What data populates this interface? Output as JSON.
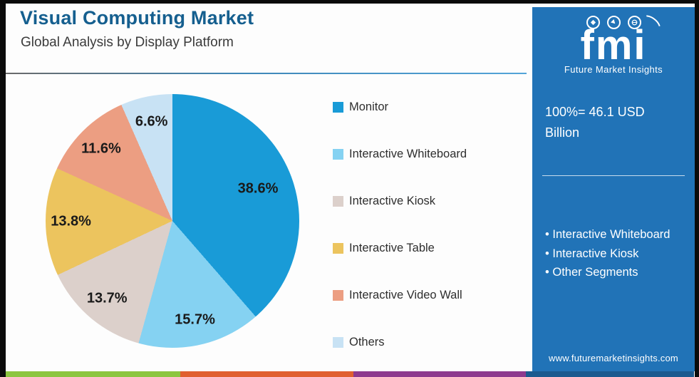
{
  "header": {
    "title": "Visual Computing Market",
    "subtitle": "Global Analysis by Display Platform"
  },
  "chart_data": {
    "type": "pie",
    "title": "Visual Computing Market - Global Analysis by Display Platform",
    "categories": [
      "Monitor",
      "Interactive Whiteboard",
      "Interactive Kiosk",
      "Interactive Table",
      "Interactive Video Wall",
      "Others"
    ],
    "values": [
      38.6,
      15.7,
      13.7,
      13.8,
      11.6,
      6.6
    ],
    "labels": [
      "38.6%",
      "15.7%",
      "13.7%",
      "13.8%",
      "11.6%",
      "6.6%"
    ],
    "unit": "%",
    "colors": [
      "#199bd7",
      "#85d2f2",
      "#dcd0cb",
      "#ecc45e",
      "#ec9e82",
      "#c8e2f4"
    ],
    "legend_position": "right",
    "total_label": "100%= 46.1 USD Billion"
  },
  "sidebar": {
    "logo": {
      "text": "fmi",
      "tagline": "Future Market Insights",
      "icons": [
        "handshake-icon",
        "compass-icon",
        "globe-icon"
      ]
    },
    "market_size": "100%= 46.1 USD Billion",
    "highlights": [
      "Interactive Whiteboard",
      "Interactive Kiosk",
      "Other Segments"
    ],
    "website": "www.futuremarketinsights.com",
    "background_color": "#2173b7"
  },
  "footer": {
    "stripe_colors": [
      "#8cc63f",
      "#e06030",
      "#8e3a8e",
      "#1b5a8f"
    ]
  },
  "colors": {
    "title_blue": "#155f8f",
    "divider_blue": "#4a9bd4",
    "frame_black": "#0b0b0b"
  }
}
